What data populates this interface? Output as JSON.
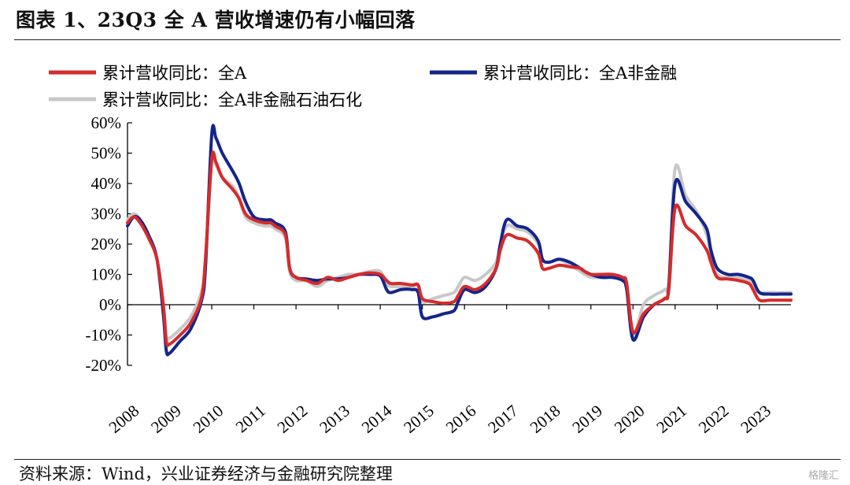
{
  "title": "图表 1、23Q3 全 A 营收增速仍有小幅回落",
  "source": "资料来源：Wind，兴业证券经济与金融研究院整理",
  "watermark": "格隆汇",
  "chart_data": {
    "type": "line",
    "ylim": [
      -0.2,
      0.6
    ],
    "yticks": [
      -0.2,
      -0.1,
      0,
      0.1,
      0.2,
      0.3,
      0.4,
      0.5,
      0.6
    ],
    "ytick_labels": [
      "-20%",
      "-10%",
      "0%",
      "10%",
      "20%",
      "30%",
      "40%",
      "50%",
      "60%"
    ],
    "xlim": [
      2008.0,
      2023.75
    ],
    "xticks": [
      2008,
      2009,
      2010,
      2011,
      2012,
      2013,
      2014,
      2015,
      2016,
      2017,
      2018,
      2019,
      2020,
      2021,
      2022,
      2023
    ],
    "xtick_labels": [
      "2008",
      "2009",
      "2010",
      "2011",
      "2012",
      "2013",
      "2014",
      "2015",
      "2016",
      "2017",
      "2018",
      "2019",
      "2020",
      "2021",
      "2022",
      "2023"
    ],
    "grid": false,
    "legend_position": "top",
    "series": [
      {
        "name": "累计营收同比：全A",
        "color": "#d62b2b",
        "points": [
          [
            2008.0,
            0.27
          ],
          [
            2008.15,
            0.29
          ],
          [
            2008.3,
            0.27
          ],
          [
            2008.5,
            0.22
          ],
          [
            2008.7,
            0.15
          ],
          [
            2008.85,
            0.0
          ],
          [
            2008.92,
            -0.12
          ],
          [
            2009.0,
            -0.13
          ],
          [
            2009.25,
            -0.1
          ],
          [
            2009.5,
            -0.06
          ],
          [
            2009.75,
            0.02
          ],
          [
            2009.85,
            0.15
          ],
          [
            2010.0,
            0.48
          ],
          [
            2010.1,
            0.47
          ],
          [
            2010.25,
            0.42
          ],
          [
            2010.5,
            0.38
          ],
          [
            2010.65,
            0.35
          ],
          [
            2010.8,
            0.3
          ],
          [
            2011.0,
            0.28
          ],
          [
            2011.25,
            0.27
          ],
          [
            2011.4,
            0.27
          ],
          [
            2011.5,
            0.26
          ],
          [
            2011.75,
            0.23
          ],
          [
            2011.85,
            0.12
          ],
          [
            2012.0,
            0.09
          ],
          [
            2012.25,
            0.08
          ],
          [
            2012.5,
            0.07
          ],
          [
            2012.75,
            0.09
          ],
          [
            2013.0,
            0.08
          ],
          [
            2013.25,
            0.09
          ],
          [
            2013.5,
            0.1
          ],
          [
            2013.75,
            0.105
          ],
          [
            2014.0,
            0.1
          ],
          [
            2014.15,
            0.08
          ],
          [
            2014.25,
            0.07
          ],
          [
            2014.5,
            0.07
          ],
          [
            2014.75,
            0.065
          ],
          [
            2014.9,
            0.065
          ],
          [
            2015.0,
            0.02
          ],
          [
            2015.25,
            0.01
          ],
          [
            2015.5,
            0.005
          ],
          [
            2015.75,
            0.01
          ],
          [
            2015.85,
            0.03
          ],
          [
            2016.0,
            0.06
          ],
          [
            2016.25,
            0.05
          ],
          [
            2016.5,
            0.07
          ],
          [
            2016.75,
            0.12
          ],
          [
            2016.85,
            0.18
          ],
          [
            2017.0,
            0.23
          ],
          [
            2017.25,
            0.22
          ],
          [
            2017.5,
            0.21
          ],
          [
            2017.75,
            0.17
          ],
          [
            2017.85,
            0.12
          ],
          [
            2018.0,
            0.12
          ],
          [
            2018.25,
            0.13
          ],
          [
            2018.5,
            0.125
          ],
          [
            2018.75,
            0.12
          ],
          [
            2018.85,
            0.11
          ],
          [
            2019.0,
            0.1
          ],
          [
            2019.25,
            0.1
          ],
          [
            2019.5,
            0.1
          ],
          [
            2019.75,
            0.09
          ],
          [
            2019.85,
            0.07
          ],
          [
            2020.0,
            -0.09
          ],
          [
            2020.25,
            -0.03
          ],
          [
            2020.5,
            0.0
          ],
          [
            2020.75,
            0.02
          ],
          [
            2020.85,
            0.05
          ],
          [
            2021.0,
            0.32
          ],
          [
            2021.25,
            0.26
          ],
          [
            2021.5,
            0.23
          ],
          [
            2021.75,
            0.18
          ],
          [
            2021.85,
            0.14
          ],
          [
            2022.0,
            0.09
          ],
          [
            2022.25,
            0.085
          ],
          [
            2022.5,
            0.08
          ],
          [
            2022.75,
            0.07
          ],
          [
            2022.85,
            0.05
          ],
          [
            2023.0,
            0.015
          ],
          [
            2023.25,
            0.015
          ],
          [
            2023.5,
            0.015
          ],
          [
            2023.75,
            0.015
          ]
        ]
      },
      {
        "name": "累计营收同比：全A非金融",
        "color": "#14258a",
        "points": [
          [
            2008.0,
            0.26
          ],
          [
            2008.15,
            0.29
          ],
          [
            2008.3,
            0.28
          ],
          [
            2008.5,
            0.23
          ],
          [
            2008.7,
            0.15
          ],
          [
            2008.85,
            -0.03
          ],
          [
            2008.92,
            -0.15
          ],
          [
            2009.0,
            -0.16
          ],
          [
            2009.25,
            -0.12
          ],
          [
            2009.5,
            -0.08
          ],
          [
            2009.75,
            0.01
          ],
          [
            2009.85,
            0.12
          ],
          [
            2010.0,
            0.56
          ],
          [
            2010.1,
            0.55
          ],
          [
            2010.25,
            0.5
          ],
          [
            2010.5,
            0.44
          ],
          [
            2010.65,
            0.4
          ],
          [
            2010.8,
            0.34
          ],
          [
            2011.0,
            0.29
          ],
          [
            2011.25,
            0.28
          ],
          [
            2011.4,
            0.28
          ],
          [
            2011.5,
            0.27
          ],
          [
            2011.75,
            0.24
          ],
          [
            2011.85,
            0.12
          ],
          [
            2012.0,
            0.09
          ],
          [
            2012.25,
            0.085
          ],
          [
            2012.5,
            0.08
          ],
          [
            2012.75,
            0.085
          ],
          [
            2013.0,
            0.085
          ],
          [
            2013.25,
            0.09
          ],
          [
            2013.5,
            0.1
          ],
          [
            2013.75,
            0.1
          ],
          [
            2014.0,
            0.095
          ],
          [
            2014.15,
            0.05
          ],
          [
            2014.25,
            0.04
          ],
          [
            2014.5,
            0.05
          ],
          [
            2014.75,
            0.05
          ],
          [
            2014.9,
            0.04
          ],
          [
            2015.0,
            -0.04
          ],
          [
            2015.25,
            -0.04
          ],
          [
            2015.5,
            -0.03
          ],
          [
            2015.75,
            -0.02
          ],
          [
            2015.85,
            0.01
          ],
          [
            2016.0,
            0.05
          ],
          [
            2016.25,
            0.04
          ],
          [
            2016.5,
            0.06
          ],
          [
            2016.75,
            0.12
          ],
          [
            2016.85,
            0.2
          ],
          [
            2017.0,
            0.28
          ],
          [
            2017.25,
            0.26
          ],
          [
            2017.5,
            0.25
          ],
          [
            2017.75,
            0.21
          ],
          [
            2017.85,
            0.15
          ],
          [
            2018.0,
            0.14
          ],
          [
            2018.25,
            0.15
          ],
          [
            2018.5,
            0.14
          ],
          [
            2018.75,
            0.12
          ],
          [
            2018.85,
            0.11
          ],
          [
            2019.0,
            0.1
          ],
          [
            2019.25,
            0.09
          ],
          [
            2019.5,
            0.09
          ],
          [
            2019.75,
            0.08
          ],
          [
            2019.85,
            0.05
          ],
          [
            2020.0,
            -0.115
          ],
          [
            2020.25,
            -0.04
          ],
          [
            2020.5,
            0.0
          ],
          [
            2020.75,
            0.02
          ],
          [
            2020.85,
            0.06
          ],
          [
            2021.0,
            0.4
          ],
          [
            2021.25,
            0.34
          ],
          [
            2021.5,
            0.3
          ],
          [
            2021.75,
            0.25
          ],
          [
            2021.85,
            0.18
          ],
          [
            2022.0,
            0.12
          ],
          [
            2022.25,
            0.1
          ],
          [
            2022.5,
            0.1
          ],
          [
            2022.75,
            0.09
          ],
          [
            2022.85,
            0.08
          ],
          [
            2023.0,
            0.04
          ],
          [
            2023.25,
            0.035
          ],
          [
            2023.5,
            0.035
          ],
          [
            2023.75,
            0.035
          ]
        ]
      },
      {
        "name": "累计营收同比：全A非金融石油石化",
        "color": "#c8c8c8",
        "points": [
          [
            2008.0,
            0.28
          ],
          [
            2008.15,
            0.3
          ],
          [
            2008.3,
            0.28
          ],
          [
            2008.5,
            0.22
          ],
          [
            2008.7,
            0.15
          ],
          [
            2008.85,
            0.0
          ],
          [
            2008.92,
            -0.1
          ],
          [
            2009.0,
            -0.11
          ],
          [
            2009.25,
            -0.08
          ],
          [
            2009.5,
            -0.04
          ],
          [
            2009.75,
            0.04
          ],
          [
            2009.85,
            0.14
          ],
          [
            2010.0,
            0.47
          ],
          [
            2010.1,
            0.46
          ],
          [
            2010.25,
            0.42
          ],
          [
            2010.5,
            0.39
          ],
          [
            2010.65,
            0.35
          ],
          [
            2010.8,
            0.29
          ],
          [
            2011.0,
            0.27
          ],
          [
            2011.25,
            0.26
          ],
          [
            2011.4,
            0.26
          ],
          [
            2011.5,
            0.25
          ],
          [
            2011.75,
            0.22
          ],
          [
            2011.85,
            0.11
          ],
          [
            2012.0,
            0.08
          ],
          [
            2012.25,
            0.08
          ],
          [
            2012.5,
            0.06
          ],
          [
            2012.75,
            0.08
          ],
          [
            2013.0,
            0.09
          ],
          [
            2013.25,
            0.1
          ],
          [
            2013.5,
            0.1
          ],
          [
            2013.75,
            0.11
          ],
          [
            2014.0,
            0.11
          ],
          [
            2014.15,
            0.07
          ],
          [
            2014.25,
            0.06
          ],
          [
            2014.5,
            0.06
          ],
          [
            2014.75,
            0.06
          ],
          [
            2014.9,
            0.06
          ],
          [
            2015.0,
            0.01
          ],
          [
            2015.25,
            0.02
          ],
          [
            2015.5,
            0.03
          ],
          [
            2015.75,
            0.04
          ],
          [
            2015.85,
            0.06
          ],
          [
            2016.0,
            0.09
          ],
          [
            2016.25,
            0.08
          ],
          [
            2016.5,
            0.1
          ],
          [
            2016.75,
            0.14
          ],
          [
            2016.85,
            0.2
          ],
          [
            2017.0,
            0.26
          ],
          [
            2017.25,
            0.25
          ],
          [
            2017.5,
            0.24
          ],
          [
            2017.75,
            0.2
          ],
          [
            2017.85,
            0.15
          ],
          [
            2018.0,
            0.14
          ],
          [
            2018.25,
            0.15
          ],
          [
            2018.5,
            0.13
          ],
          [
            2018.75,
            0.11
          ],
          [
            2018.85,
            0.1
          ],
          [
            2019.0,
            0.09
          ],
          [
            2019.25,
            0.09
          ],
          [
            2019.5,
            0.09
          ],
          [
            2019.75,
            0.09
          ],
          [
            2019.85,
            0.06
          ],
          [
            2020.0,
            -0.1
          ],
          [
            2020.25,
            0.0
          ],
          [
            2020.5,
            0.03
          ],
          [
            2020.75,
            0.05
          ],
          [
            2020.85,
            0.08
          ],
          [
            2021.0,
            0.45
          ],
          [
            2021.25,
            0.36
          ],
          [
            2021.5,
            0.31
          ],
          [
            2021.75,
            0.23
          ],
          [
            2021.85,
            0.16
          ],
          [
            2022.0,
            0.1
          ],
          [
            2022.25,
            0.09
          ],
          [
            2022.5,
            0.09
          ],
          [
            2022.75,
            0.08
          ],
          [
            2022.85,
            0.06
          ],
          [
            2023.0,
            0.04
          ],
          [
            2023.25,
            0.04
          ],
          [
            2023.5,
            0.04
          ],
          [
            2023.75,
            0.04
          ]
        ]
      }
    ]
  }
}
